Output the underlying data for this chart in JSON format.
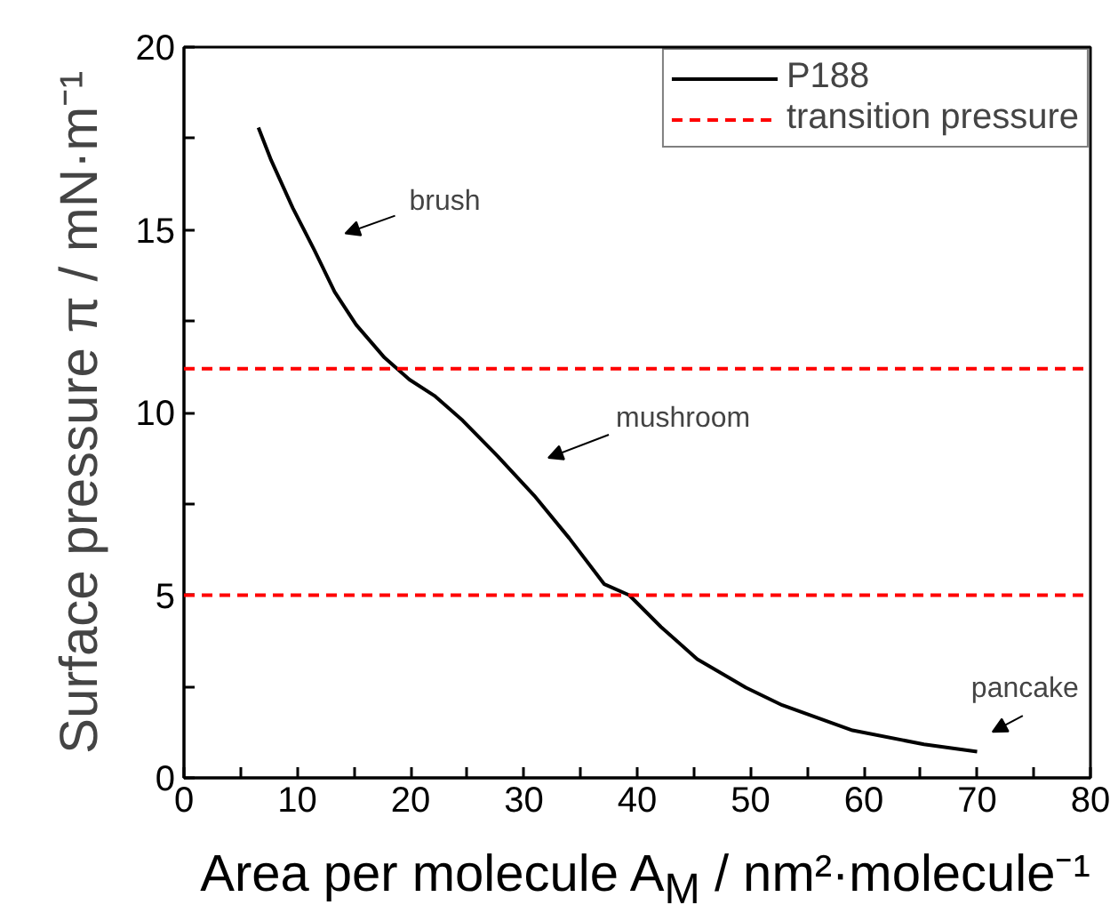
{
  "chart_data": {
    "type": "line",
    "xlabel": "Area per molecule A$_{M}$ / nm²·molecule⁻¹",
    "ylabel": "Surface pressure π / mN·m⁻¹",
    "x": [
      6.57,
      7.7,
      9.6,
      11.5,
      13.3,
      15.2,
      17.7,
      19.9,
      22.1,
      24.6,
      27.7,
      30.9,
      34.0,
      37.1,
      39.3,
      42.1,
      45.3,
      49.6,
      52.8,
      59.0,
      65.3,
      70.0
    ],
    "series": [
      {
        "name": "P188",
        "color": "#000000",
        "values": [
          17.8,
          16.9,
          15.6,
          14.45,
          13.3,
          12.4,
          11.5,
          10.9,
          10.46,
          9.78,
          8.8,
          7.73,
          6.56,
          5.3,
          5.0,
          4.13,
          3.25,
          2.47,
          1.99,
          1.3,
          0.92,
          0.72
        ]
      }
    ],
    "line_style": "solid",
    "ref_lines": [
      {
        "axis": "y",
        "value": 11.2,
        "label": "transition pressure",
        "color": "#ff0000",
        "line_style": "dashed"
      },
      {
        "axis": "y",
        "value": 5.0,
        "label": null,
        "color": "#ff0000",
        "line_style": "dashed"
      }
    ],
    "annotations": [
      "brush",
      "mushroom",
      "pancake"
    ],
    "xlim": [
      0,
      80
    ],
    "ylim": [
      0,
      20
    ],
    "xticks": [
      0,
      {
        "value": 5,
        "label": null
      },
      10,
      {
        "value": 15,
        "label": null
      },
      20,
      {
        "value": 25,
        "label": null
      },
      30,
      {
        "value": 35,
        "label": null
      },
      40,
      {
        "value": 45,
        "label": null
      },
      50,
      {
        "value": 55,
        "label": null
      },
      60,
      {
        "value": 65,
        "label": null
      },
      70,
      {
        "value": 75,
        "label": null
      },
      80
    ],
    "yticks": [
      0,
      {
        "value": 2.5,
        "label": null
      },
      5,
      {
        "value": 7.5,
        "label": null
      },
      10,
      {
        "value": 12.5,
        "label": null
      },
      15,
      {
        "value": 17.5,
        "label": null
      },
      20
    ],
    "grid": false,
    "legend": "top right"
  }
}
